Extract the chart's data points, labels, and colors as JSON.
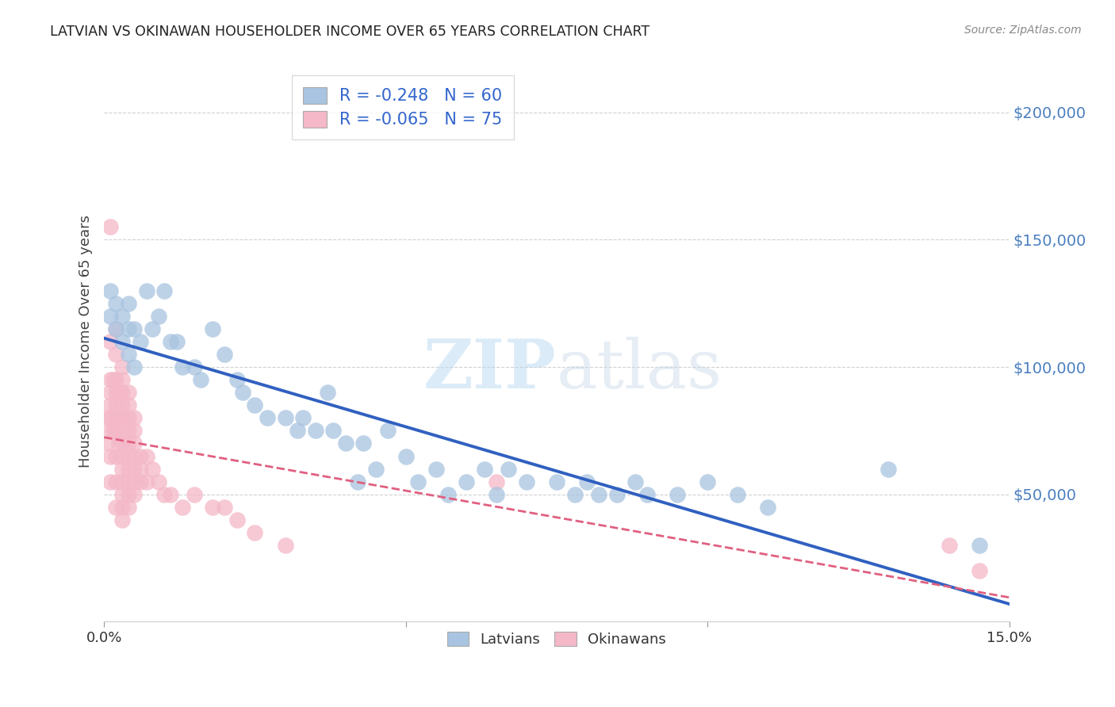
{
  "title": "LATVIAN VS OKINAWAN HOUSEHOLDER INCOME OVER 65 YEARS CORRELATION CHART",
  "source": "Source: ZipAtlas.com",
  "ylabel": "Householder Income Over 65 years",
  "xlim": [
    0.0,
    0.15
  ],
  "ylim": [
    0,
    220000
  ],
  "yticks": [
    50000,
    100000,
    150000,
    200000
  ],
  "ytick_labels": [
    "$50,000",
    "$100,000",
    "$150,000",
    "$200,000"
  ],
  "xticks": [
    0.0,
    0.05,
    0.1,
    0.15
  ],
  "xtick_labels_show": [
    "0.0%",
    "",
    "",
    "15.0%"
  ],
  "latvian_R": "-0.248",
  "latvian_N": "60",
  "okinawan_R": "-0.065",
  "okinawan_N": "75",
  "latvian_color": "#a8c4e0",
  "okinawan_color": "#f4b8c8",
  "latvian_line_color": "#3060c0",
  "okinawan_line_color": "#e06080",
  "watermark_zip": "ZIP",
  "watermark_atlas": "atlas",
  "background_color": "#ffffff",
  "latvian_x": [
    0.001,
    0.001,
    0.002,
    0.002,
    0.003,
    0.003,
    0.004,
    0.004,
    0.004,
    0.005,
    0.005,
    0.006,
    0.007,
    0.008,
    0.009,
    0.01,
    0.011,
    0.012,
    0.013,
    0.015,
    0.016,
    0.018,
    0.02,
    0.022,
    0.023,
    0.025,
    0.027,
    0.03,
    0.032,
    0.033,
    0.035,
    0.037,
    0.038,
    0.04,
    0.042,
    0.043,
    0.045,
    0.047,
    0.05,
    0.052,
    0.055,
    0.057,
    0.06,
    0.063,
    0.065,
    0.067,
    0.07,
    0.075,
    0.078,
    0.08,
    0.082,
    0.085,
    0.088,
    0.09,
    0.095,
    0.1,
    0.105,
    0.11,
    0.13,
    0.145
  ],
  "latvian_y": [
    130000,
    120000,
    125000,
    115000,
    120000,
    110000,
    125000,
    115000,
    105000,
    115000,
    100000,
    110000,
    130000,
    115000,
    120000,
    130000,
    110000,
    110000,
    100000,
    100000,
    95000,
    115000,
    105000,
    95000,
    90000,
    85000,
    80000,
    80000,
    75000,
    80000,
    75000,
    90000,
    75000,
    70000,
    55000,
    70000,
    60000,
    75000,
    65000,
    55000,
    60000,
    50000,
    55000,
    60000,
    50000,
    60000,
    55000,
    55000,
    50000,
    55000,
    50000,
    50000,
    55000,
    50000,
    50000,
    55000,
    50000,
    45000,
    60000,
    30000
  ],
  "okinawan_x": [
    0.0005,
    0.0005,
    0.001,
    0.001,
    0.001,
    0.001,
    0.001,
    0.001,
    0.001,
    0.001,
    0.001,
    0.0015,
    0.0015,
    0.002,
    0.002,
    0.002,
    0.002,
    0.002,
    0.002,
    0.002,
    0.002,
    0.002,
    0.002,
    0.0025,
    0.0025,
    0.0025,
    0.003,
    0.003,
    0.003,
    0.003,
    0.003,
    0.003,
    0.003,
    0.003,
    0.003,
    0.003,
    0.003,
    0.003,
    0.003,
    0.004,
    0.004,
    0.004,
    0.004,
    0.004,
    0.004,
    0.004,
    0.004,
    0.004,
    0.004,
    0.005,
    0.005,
    0.005,
    0.005,
    0.005,
    0.005,
    0.005,
    0.006,
    0.006,
    0.006,
    0.007,
    0.007,
    0.008,
    0.009,
    0.01,
    0.011,
    0.013,
    0.015,
    0.018,
    0.02,
    0.022,
    0.025,
    0.03,
    0.065,
    0.14,
    0.145
  ],
  "okinawan_y": [
    80000,
    70000,
    155000,
    110000,
    95000,
    90000,
    85000,
    80000,
    75000,
    65000,
    55000,
    95000,
    75000,
    115000,
    105000,
    95000,
    90000,
    85000,
    80000,
    75000,
    65000,
    55000,
    45000,
    90000,
    80000,
    70000,
    100000,
    95000,
    90000,
    85000,
    80000,
    75000,
    70000,
    65000,
    60000,
    55000,
    50000,
    45000,
    40000,
    90000,
    85000,
    80000,
    75000,
    70000,
    65000,
    60000,
    55000,
    50000,
    45000,
    80000,
    75000,
    70000,
    65000,
    60000,
    55000,
    50000,
    65000,
    60000,
    55000,
    65000,
    55000,
    60000,
    55000,
    50000,
    50000,
    45000,
    50000,
    45000,
    45000,
    40000,
    35000,
    30000,
    55000,
    30000,
    20000
  ]
}
